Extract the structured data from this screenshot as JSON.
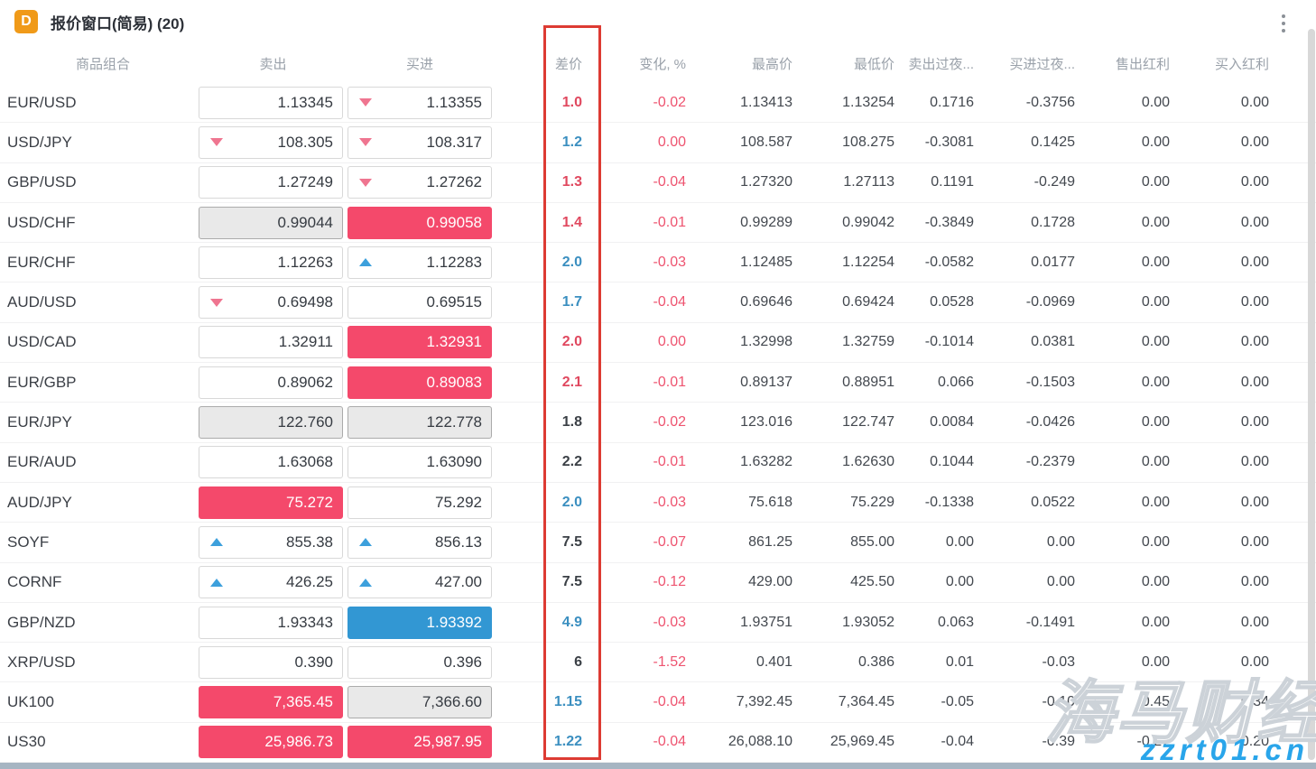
{
  "window": {
    "icon_letter": "D",
    "title": "报价窗口(简易) (20)"
  },
  "columns": [
    {
      "key": "name",
      "label": "商品组合",
      "align": "center"
    },
    {
      "key": "sell",
      "label": "卖出",
      "align": "center"
    },
    {
      "key": "buy",
      "label": "买进",
      "align": "center"
    },
    {
      "key": "spread",
      "label": "差价",
      "align": "right"
    },
    {
      "key": "change",
      "label": "变化, %",
      "align": "right"
    },
    {
      "key": "high",
      "label": "最高价",
      "align": "right"
    },
    {
      "key": "low",
      "label": "最低价",
      "align": "right"
    },
    {
      "key": "sell_overnight",
      "label": "卖出过夜...",
      "align": "right"
    },
    {
      "key": "buy_overnight",
      "label": "买进过夜...",
      "align": "right"
    },
    {
      "key": "sell_dividend",
      "label": "售出红利",
      "align": "right"
    },
    {
      "key": "buy_dividend",
      "label": "买入红利",
      "align": "right"
    }
  ],
  "rows": [
    {
      "name": "EUR/USD",
      "sell": {
        "value": "1.13345",
        "style": "plain",
        "arrow": "none"
      },
      "buy": {
        "value": "1.13355",
        "style": "plain",
        "arrow": "down"
      },
      "spread": {
        "value": "1.0",
        "color": "red"
      },
      "change": "-0.02",
      "high": "1.13413",
      "low": "1.13254",
      "sell_overnight": "0.1716",
      "buy_overnight": "-0.3756",
      "sell_dividend": "0.00",
      "buy_dividend": "0.00"
    },
    {
      "name": "USD/JPY",
      "sell": {
        "value": "108.305",
        "style": "plain",
        "arrow": "down"
      },
      "buy": {
        "value": "108.317",
        "style": "plain",
        "arrow": "down"
      },
      "spread": {
        "value": "1.2",
        "color": "blue"
      },
      "change": "0.00",
      "high": "108.587",
      "low": "108.275",
      "sell_overnight": "-0.3081",
      "buy_overnight": "0.1425",
      "sell_dividend": "0.00",
      "buy_dividend": "0.00"
    },
    {
      "name": "GBP/USD",
      "sell": {
        "value": "1.27249",
        "style": "plain",
        "arrow": "none"
      },
      "buy": {
        "value": "1.27262",
        "style": "plain",
        "arrow": "down"
      },
      "spread": {
        "value": "1.3",
        "color": "red"
      },
      "change": "-0.04",
      "high": "1.27320",
      "low": "1.27113",
      "sell_overnight": "0.1191",
      "buy_overnight": "-0.249",
      "sell_dividend": "0.00",
      "buy_dividend": "0.00"
    },
    {
      "name": "USD/CHF",
      "sell": {
        "value": "0.99044",
        "style": "gray",
        "arrow": "none"
      },
      "buy": {
        "value": "0.99058",
        "style": "pink",
        "arrow": "none"
      },
      "spread": {
        "value": "1.4",
        "color": "red"
      },
      "change": "-0.01",
      "high": "0.99289",
      "low": "0.99042",
      "sell_overnight": "-0.3849",
      "buy_overnight": "0.1728",
      "sell_dividend": "0.00",
      "buy_dividend": "0.00"
    },
    {
      "name": "EUR/CHF",
      "sell": {
        "value": "1.12263",
        "style": "plain",
        "arrow": "none"
      },
      "buy": {
        "value": "1.12283",
        "style": "plain",
        "arrow": "up"
      },
      "spread": {
        "value": "2.0",
        "color": "blue"
      },
      "change": "-0.03",
      "high": "1.12485",
      "low": "1.12254",
      "sell_overnight": "-0.0582",
      "buy_overnight": "0.0177",
      "sell_dividend": "0.00",
      "buy_dividend": "0.00"
    },
    {
      "name": "AUD/USD",
      "sell": {
        "value": "0.69498",
        "style": "plain",
        "arrow": "down"
      },
      "buy": {
        "value": "0.69515",
        "style": "plain",
        "arrow": "none"
      },
      "spread": {
        "value": "1.7",
        "color": "blue"
      },
      "change": "-0.04",
      "high": "0.69646",
      "low": "0.69424",
      "sell_overnight": "0.0528",
      "buy_overnight": "-0.0969",
      "sell_dividend": "0.00",
      "buy_dividend": "0.00"
    },
    {
      "name": "USD/CAD",
      "sell": {
        "value": "1.32911",
        "style": "plain",
        "arrow": "none"
      },
      "buy": {
        "value": "1.32931",
        "style": "pink",
        "arrow": "none"
      },
      "spread": {
        "value": "2.0",
        "color": "red"
      },
      "change": "0.00",
      "high": "1.32998",
      "low": "1.32759",
      "sell_overnight": "-0.1014",
      "buy_overnight": "0.0381",
      "sell_dividend": "0.00",
      "buy_dividend": "0.00"
    },
    {
      "name": "EUR/GBP",
      "sell": {
        "value": "0.89062",
        "style": "plain",
        "arrow": "none"
      },
      "buy": {
        "value": "0.89083",
        "style": "pink",
        "arrow": "none"
      },
      "spread": {
        "value": "2.1",
        "color": "red"
      },
      "change": "-0.01",
      "high": "0.89137",
      "low": "0.88951",
      "sell_overnight": "0.066",
      "buy_overnight": "-0.1503",
      "sell_dividend": "0.00",
      "buy_dividend": "0.00"
    },
    {
      "name": "EUR/JPY",
      "sell": {
        "value": "122.760",
        "style": "gray",
        "arrow": "none"
      },
      "buy": {
        "value": "122.778",
        "style": "gray",
        "arrow": "none"
      },
      "spread": {
        "value": "1.8",
        "color": "dark"
      },
      "change": "-0.02",
      "high": "123.016",
      "low": "122.747",
      "sell_overnight": "0.0084",
      "buy_overnight": "-0.0426",
      "sell_dividend": "0.00",
      "buy_dividend": "0.00"
    },
    {
      "name": "EUR/AUD",
      "sell": {
        "value": "1.63068",
        "style": "plain",
        "arrow": "none"
      },
      "buy": {
        "value": "1.63090",
        "style": "plain",
        "arrow": "none"
      },
      "spread": {
        "value": "2.2",
        "color": "dark"
      },
      "change": "-0.01",
      "high": "1.63282",
      "low": "1.62630",
      "sell_overnight": "0.1044",
      "buy_overnight": "-0.2379",
      "sell_dividend": "0.00",
      "buy_dividend": "0.00"
    },
    {
      "name": "AUD/JPY",
      "sell": {
        "value": "75.272",
        "style": "pink",
        "arrow": "none"
      },
      "buy": {
        "value": "75.292",
        "style": "plain",
        "arrow": "none"
      },
      "spread": {
        "value": "2.0",
        "color": "blue"
      },
      "change": "-0.03",
      "high": "75.618",
      "low": "75.229",
      "sell_overnight": "-0.1338",
      "buy_overnight": "0.0522",
      "sell_dividend": "0.00",
      "buy_dividend": "0.00"
    },
    {
      "name": "SOYF",
      "sell": {
        "value": "855.38",
        "style": "plain",
        "arrow": "up"
      },
      "buy": {
        "value": "856.13",
        "style": "plain",
        "arrow": "up"
      },
      "spread": {
        "value": "7.5",
        "color": "dark"
      },
      "change": "-0.07",
      "high": "861.25",
      "low": "855.00",
      "sell_overnight": "0.00",
      "buy_overnight": "0.00",
      "sell_dividend": "0.00",
      "buy_dividend": "0.00"
    },
    {
      "name": "CORNF",
      "sell": {
        "value": "426.25",
        "style": "plain",
        "arrow": "up"
      },
      "buy": {
        "value": "427.00",
        "style": "plain",
        "arrow": "up"
      },
      "spread": {
        "value": "7.5",
        "color": "dark"
      },
      "change": "-0.12",
      "high": "429.00",
      "low": "425.50",
      "sell_overnight": "0.00",
      "buy_overnight": "0.00",
      "sell_dividend": "0.00",
      "buy_dividend": "0.00"
    },
    {
      "name": "GBP/NZD",
      "sell": {
        "value": "1.93343",
        "style": "plain",
        "arrow": "none"
      },
      "buy": {
        "value": "1.93392",
        "style": "blue",
        "arrow": "none"
      },
      "spread": {
        "value": "4.9",
        "color": "blue"
      },
      "change": "-0.03",
      "high": "1.93751",
      "low": "1.93052",
      "sell_overnight": "0.063",
      "buy_overnight": "-0.1491",
      "sell_dividend": "0.00",
      "buy_dividend": "0.00"
    },
    {
      "name": "XRP/USD",
      "sell": {
        "value": "0.390",
        "style": "plain",
        "arrow": "none"
      },
      "buy": {
        "value": "0.396",
        "style": "plain",
        "arrow": "none"
      },
      "spread": {
        "value": "6",
        "color": "dark"
      },
      "change": "-1.52",
      "high": "0.401",
      "low": "0.386",
      "sell_overnight": "0.01",
      "buy_overnight": "-0.03",
      "sell_dividend": "0.00",
      "buy_dividend": "0.00"
    },
    {
      "name": "UK100",
      "sell": {
        "value": "7,365.45",
        "style": "pink",
        "arrow": "none"
      },
      "buy": {
        "value": "7,366.60",
        "style": "gray",
        "arrow": "none"
      },
      "spread": {
        "value": "1.15",
        "color": "blue"
      },
      "change": "-0.04",
      "high": "7,392.45",
      "low": "7,364.45",
      "sell_overnight": "-0.05",
      "buy_overnight": "-0.10",
      "sell_dividend": "-0.45",
      "buy_dividend": "0.34"
    },
    {
      "name": "US30",
      "sell": {
        "value": "25,986.73",
        "style": "pink",
        "arrow": "none"
      },
      "buy": {
        "value": "25,987.95",
        "style": "pink",
        "arrow": "none"
      },
      "spread": {
        "value": "1.22",
        "color": "blue"
      },
      "change": "-0.04",
      "high": "26,088.10",
      "low": "25,969.45",
      "sell_overnight": "-0.04",
      "buy_overnight": "-0.39",
      "sell_dividend": "-0.27",
      "buy_dividend": "0.20"
    }
  ],
  "watermark": {
    "line1": "海马财经",
    "line2": "zzrt01.cn"
  },
  "colors": {
    "icon_orange": "#f09a19",
    "price_up_blue": "#3297d3",
    "price_down_pink": "#f4496b",
    "stale_gray": "#e9e9e9",
    "spread_red_text": "#e0485f",
    "spread_blue_text": "#3b8fc0",
    "change_red_text": "#ee5470",
    "highlight_rectangle": "#dd3b33",
    "watermark_blue": "#29a5ea"
  }
}
